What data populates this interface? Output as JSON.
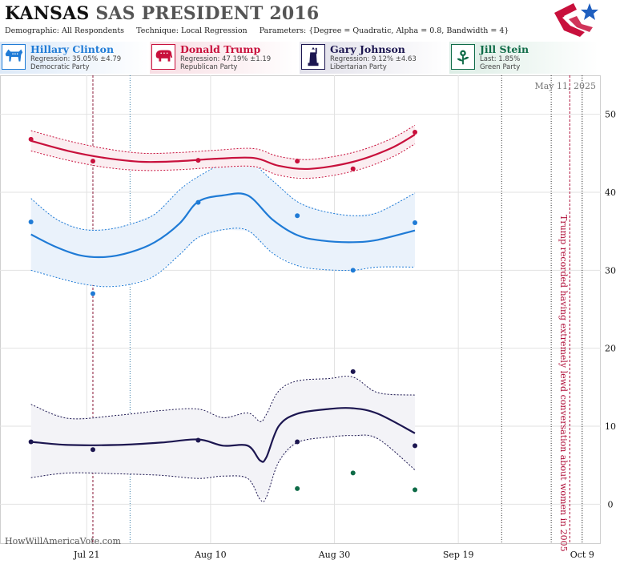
{
  "header": {
    "title_state": "KANSAS",
    "title_rest": "SAS PRESIDENT 2016",
    "demographic_label": "Demographic:",
    "demographic_value": "All Respondents",
    "technique_label": "Technique:",
    "technique_value": "Local Regression",
    "parameters_label": "Parameters:",
    "parameters_value": "{Degree = Quadratic, Alpha = 0.8, Bandwidth = 4}"
  },
  "legend": [
    {
      "name": "Hillary Clinton",
      "stat": "Regression: 35.05% ±4.79",
      "party": "Democratic Party",
      "color": "#1f7bd6",
      "icon": "donkey-icon"
    },
    {
      "name": "Donald Trump",
      "stat": "Regression: 47.19% ±1.19",
      "party": "Republican Party",
      "color": "#c8103c",
      "icon": "elephant-icon"
    },
    {
      "name": "Gary Johnson",
      "stat": "Regression: 9.12% ±4.63",
      "party": "Libertarian Party",
      "color": "#1c1650",
      "icon": "statue-of-liberty-icon"
    },
    {
      "name": "Jill Stein",
      "stat": "Last: 1.85%",
      "party": "Green Party",
      "color": "#0e6b47",
      "icon": "flower-icon"
    }
  ],
  "date_stamp": "May 11, 2025",
  "watermark": "HowWillAmericaVote.com",
  "annotation": "Trump recorded having extremely lewd conversation about women in 2005",
  "chart_data": {
    "type": "line",
    "xlabel": "",
    "ylabel": "",
    "ylim": [
      -5,
      55
    ],
    "xlim": [
      "2016-07-07",
      "2016-10-12"
    ],
    "x_ticks": [
      {
        "date": "2016-07-21",
        "label": "Jul 21"
      },
      {
        "date": "2016-08-10",
        "label": "Aug 10"
      },
      {
        "date": "2016-08-30",
        "label": "Aug 30"
      },
      {
        "date": "2016-09-19",
        "label": "Sep 19"
      },
      {
        "date": "2016-10-09",
        "label": "Oct 9"
      }
    ],
    "y_ticks": [
      0,
      10,
      20,
      30,
      40,
      50
    ],
    "grid": true,
    "vertical_events": [
      {
        "date": "2016-07-22",
        "color": "#8b1a3a",
        "style": "dash"
      },
      {
        "date": "2016-07-28",
        "color": "#3a7fa8",
        "style": "dot"
      },
      {
        "date": "2016-09-26",
        "color": "#333333",
        "style": "dot"
      },
      {
        "date": "2016-10-04",
        "color": "#333333",
        "style": "dot"
      },
      {
        "date": "2016-10-07",
        "color": "#b0103a",
        "style": "dash"
      },
      {
        "date": "2016-10-09",
        "color": "#333333",
        "style": "dot"
      }
    ],
    "series": [
      {
        "name": "Hillary Clinton",
        "color": "#1f7bd6",
        "band_fill": "#eaf2fb",
        "points": [
          [
            "2016-07-12",
            36.2
          ],
          [
            "2016-07-22",
            27.0
          ],
          [
            "2016-08-08",
            38.7
          ],
          [
            "2016-08-24",
            37.0
          ],
          [
            "2016-09-02",
            30.0
          ],
          [
            "2016-09-12",
            36.1
          ]
        ],
        "trend": [
          [
            "2016-07-12",
            34.6
          ],
          [
            "2016-07-16",
            33.0
          ],
          [
            "2016-07-20",
            31.9
          ],
          [
            "2016-07-24",
            31.7
          ],
          [
            "2016-07-28",
            32.3
          ],
          [
            "2016-08-01",
            33.6
          ],
          [
            "2016-08-05",
            36.0
          ],
          [
            "2016-08-08",
            38.8
          ],
          [
            "2016-08-12",
            39.6
          ],
          [
            "2016-08-16",
            39.6
          ],
          [
            "2016-08-20",
            36.5
          ],
          [
            "2016-08-24",
            34.5
          ],
          [
            "2016-08-28",
            33.8
          ],
          [
            "2016-09-02",
            33.6
          ],
          [
            "2016-09-06",
            33.9
          ],
          [
            "2016-09-12",
            35.1
          ]
        ],
        "upper": [
          [
            "2016-07-12",
            39.2
          ],
          [
            "2016-07-16",
            36.6
          ],
          [
            "2016-07-20",
            35.3
          ],
          [
            "2016-07-24",
            35.2
          ],
          [
            "2016-07-28",
            35.9
          ],
          [
            "2016-08-01",
            37.2
          ],
          [
            "2016-08-05",
            40.3
          ],
          [
            "2016-08-08",
            42.0
          ],
          [
            "2016-08-12",
            43.6
          ],
          [
            "2016-08-16",
            44.0
          ],
          [
            "2016-08-20",
            41.5
          ],
          [
            "2016-08-24",
            38.8
          ],
          [
            "2016-08-28",
            37.6
          ],
          [
            "2016-09-02",
            37.0
          ],
          [
            "2016-09-06",
            37.4
          ],
          [
            "2016-09-12",
            39.9
          ]
        ],
        "lower": [
          [
            "2016-07-12",
            30.0
          ],
          [
            "2016-07-16",
            29.1
          ],
          [
            "2016-07-20",
            28.3
          ],
          [
            "2016-07-24",
            27.9
          ],
          [
            "2016-07-28",
            28.2
          ],
          [
            "2016-08-01",
            29.3
          ],
          [
            "2016-08-05",
            32.0
          ],
          [
            "2016-08-08",
            34.2
          ],
          [
            "2016-08-12",
            35.2
          ],
          [
            "2016-08-16",
            35.1
          ],
          [
            "2016-08-20",
            32.2
          ],
          [
            "2016-08-24",
            30.6
          ],
          [
            "2016-08-28",
            30.1
          ],
          [
            "2016-09-02",
            30.0
          ],
          [
            "2016-09-06",
            30.4
          ],
          [
            "2016-09-12",
            30.4
          ]
        ]
      },
      {
        "name": "Donald Trump",
        "color": "#c8103c",
        "band_fill": "#fbeef1",
        "points": [
          [
            "2016-07-12",
            46.8
          ],
          [
            "2016-07-22",
            44.0
          ],
          [
            "2016-08-08",
            44.1
          ],
          [
            "2016-08-24",
            44.0
          ],
          [
            "2016-09-02",
            43.0
          ],
          [
            "2016-09-12",
            47.7
          ]
        ],
        "trend": [
          [
            "2016-07-12",
            46.6
          ],
          [
            "2016-07-18",
            45.3
          ],
          [
            "2016-07-24",
            44.4
          ],
          [
            "2016-07-30",
            43.9
          ],
          [
            "2016-08-05",
            44.0
          ],
          [
            "2016-08-11",
            44.3
          ],
          [
            "2016-08-17",
            44.4
          ],
          [
            "2016-08-21",
            43.4
          ],
          [
            "2016-08-26",
            43.0
          ],
          [
            "2016-09-02",
            43.9
          ],
          [
            "2016-09-08",
            45.6
          ],
          [
            "2016-09-12",
            47.4
          ]
        ],
        "upper": [
          [
            "2016-07-12",
            47.9
          ],
          [
            "2016-07-18",
            46.6
          ],
          [
            "2016-07-24",
            45.6
          ],
          [
            "2016-07-30",
            45.0
          ],
          [
            "2016-08-05",
            45.1
          ],
          [
            "2016-08-11",
            45.4
          ],
          [
            "2016-08-17",
            45.6
          ],
          [
            "2016-08-21",
            44.6
          ],
          [
            "2016-08-26",
            44.2
          ],
          [
            "2016-09-02",
            45.1
          ],
          [
            "2016-09-08",
            46.8
          ],
          [
            "2016-09-12",
            48.6
          ]
        ],
        "lower": [
          [
            "2016-07-12",
            45.3
          ],
          [
            "2016-07-18",
            44.1
          ],
          [
            "2016-07-24",
            43.2
          ],
          [
            "2016-07-30",
            42.8
          ],
          [
            "2016-08-05",
            42.9
          ],
          [
            "2016-08-11",
            43.2
          ],
          [
            "2016-08-17",
            43.3
          ],
          [
            "2016-08-21",
            42.2
          ],
          [
            "2016-08-26",
            41.8
          ],
          [
            "2016-09-02",
            42.7
          ],
          [
            "2016-09-08",
            44.4
          ],
          [
            "2016-09-12",
            46.2
          ]
        ]
      },
      {
        "name": "Gary Johnson",
        "color": "#1c1650",
        "band_fill": "#f3f3f7",
        "points": [
          [
            "2016-07-12",
            8.0
          ],
          [
            "2016-07-22",
            7.0
          ],
          [
            "2016-08-08",
            8.2
          ],
          [
            "2016-08-24",
            8.0
          ],
          [
            "2016-09-02",
            17.0
          ],
          [
            "2016-09-12",
            7.5
          ]
        ],
        "trend": [
          [
            "2016-07-12",
            8.0
          ],
          [
            "2016-07-18",
            7.6
          ],
          [
            "2016-07-26",
            7.6
          ],
          [
            "2016-08-02",
            7.9
          ],
          [
            "2016-08-08",
            8.3
          ],
          [
            "2016-08-12",
            7.5
          ],
          [
            "2016-08-16",
            7.5
          ],
          [
            "2016-08-18",
            5.6
          ],
          [
            "2016-08-19",
            6.0
          ],
          [
            "2016-08-21",
            10.0
          ],
          [
            "2016-08-24",
            11.6
          ],
          [
            "2016-08-29",
            12.2
          ],
          [
            "2016-09-02",
            12.3
          ],
          [
            "2016-09-06",
            11.6
          ],
          [
            "2016-09-12",
            9.1
          ]
        ],
        "upper": [
          [
            "2016-07-12",
            12.8
          ],
          [
            "2016-07-18",
            11.0
          ],
          [
            "2016-07-26",
            11.4
          ],
          [
            "2016-08-02",
            12.0
          ],
          [
            "2016-08-08",
            12.2
          ],
          [
            "2016-08-12",
            11.1
          ],
          [
            "2016-08-16",
            11.7
          ],
          [
            "2016-08-18",
            10.6
          ],
          [
            "2016-08-19",
            11.5
          ],
          [
            "2016-08-21",
            14.5
          ],
          [
            "2016-08-24",
            15.8
          ],
          [
            "2016-08-29",
            16.1
          ],
          [
            "2016-09-02",
            16.3
          ],
          [
            "2016-09-06",
            14.3
          ],
          [
            "2016-09-12",
            14.0
          ]
        ],
        "lower": [
          [
            "2016-07-12",
            3.4
          ],
          [
            "2016-07-18",
            4.0
          ],
          [
            "2016-07-26",
            3.9
          ],
          [
            "2016-08-02",
            3.7
          ],
          [
            "2016-08-08",
            3.3
          ],
          [
            "2016-08-12",
            3.6
          ],
          [
            "2016-08-16",
            3.3
          ],
          [
            "2016-08-18",
            0.6
          ],
          [
            "2016-08-19",
            0.9
          ],
          [
            "2016-08-21",
            5.4
          ],
          [
            "2016-08-24",
            7.9
          ],
          [
            "2016-08-29",
            8.6
          ],
          [
            "2016-09-02",
            8.8
          ],
          [
            "2016-09-06",
            8.4
          ],
          [
            "2016-09-12",
            4.4
          ]
        ]
      },
      {
        "name": "Jill Stein",
        "color": "#0e6b47",
        "points": [
          [
            "2016-08-24",
            2.0
          ],
          [
            "2016-09-02",
            4.0
          ],
          [
            "2016-09-12",
            1.85
          ]
        ]
      }
    ]
  }
}
